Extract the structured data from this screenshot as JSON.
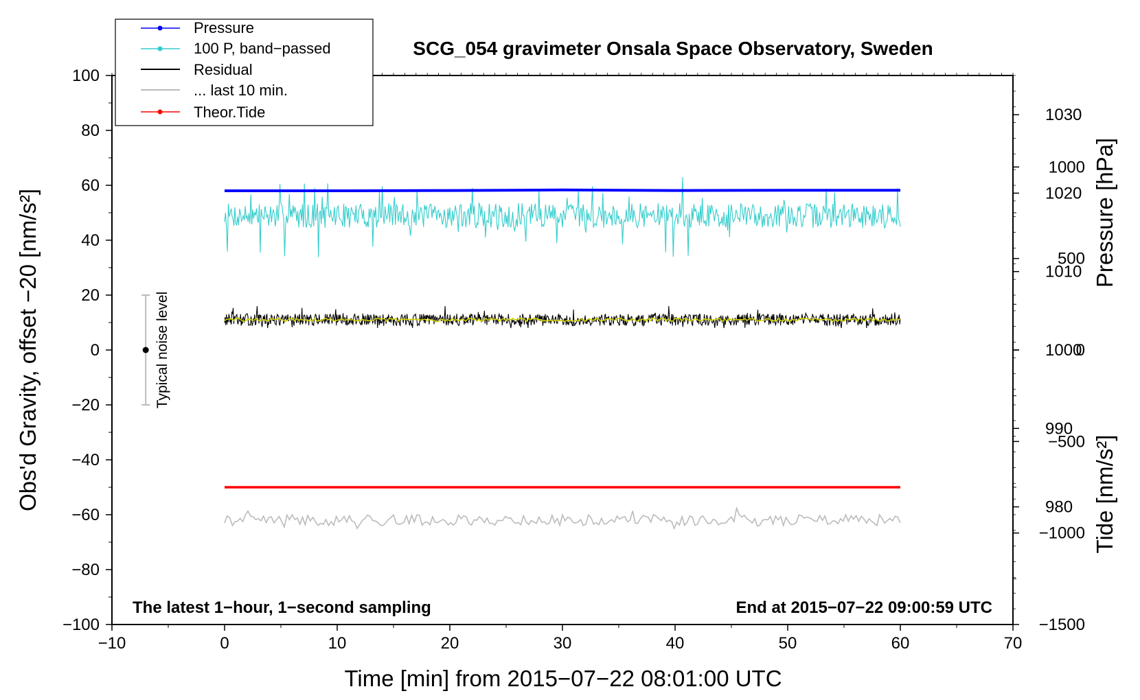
{
  "chart_data": {
    "type": "line",
    "title": "SCG_054 gravimeter Onsala Space Observatory, Sweden",
    "xlabel": "Time [min] from 2015−07−22 08:01:00 UTC",
    "ylabel_main": "Obs'd Gravity, offset −20 [nm/s²]",
    "ylabel_pressure": "Pressure [hPa]",
    "ylabel_tide": "Tide [nm/s²]",
    "xlim": [
      -10,
      70
    ],
    "ylim": [
      -100,
      100
    ],
    "pressure_ylim": [
      965,
      1035
    ],
    "tide_ylim": [
      -1500,
      1500
    ],
    "x_ticks": [
      "−10",
      "0",
      "10",
      "20",
      "30",
      "40",
      "50",
      "60",
      "70"
    ],
    "y_ticks": [
      "−100",
      "−80",
      "−60",
      "−40",
      "−20",
      "0",
      "20",
      "40",
      "60",
      "80",
      "100"
    ],
    "pressure_ticks": [
      "980",
      "990",
      "1000",
      "1010",
      "1020",
      "1030"
    ],
    "tide_ticks": [
      "−1500",
      "−1000",
      "−500",
      "0",
      "500",
      "1000"
    ],
    "grid": false,
    "legend_position": "top-left",
    "legend": [
      "Pressure",
      "100 P, band−passed",
      "Residual",
      "... last 10 min.",
      "Theor.Tide"
    ],
    "series": [
      {
        "name": "Pressure",
        "color": "#0000ff",
        "x": [
          0,
          10,
          20,
          30,
          40,
          50,
          60
        ],
        "y": [
          58,
          58,
          58.1,
          58.3,
          58.1,
          58.2,
          58.2
        ]
      },
      {
        "name": "100 P, band−passed",
        "color": "#33cccc",
        "x_range": [
          0,
          60
        ],
        "mean": 49,
        "min": 32,
        "max": 64
      },
      {
        "name": "Residual",
        "color": "#000000",
        "x_range": [
          0,
          60
        ],
        "mean": 11,
        "min": 8,
        "max": 16
      },
      {
        "name": "... last 10 min.",
        "color": "#bbbbbb",
        "x_range": [
          0,
          60
        ],
        "mean": -62,
        "min": -65,
        "max": -56
      },
      {
        "name": "Theor.Tide",
        "color": "#ff0000",
        "x": [
          0,
          30,
          60
        ],
        "y": [
          -50,
          -50,
          -50
        ]
      }
    ],
    "annotations": {
      "left_note": "The latest 1−hour, 1−second sampling",
      "right_note": "End at 2015−07−22 09:00:59 UTC",
      "noise_label": "Typical noise level",
      "noise_bar": {
        "x": -7,
        "center": 0,
        "low": -20,
        "high": 20
      }
    },
    "colors": {
      "pressure": "#0000ff",
      "bandpassed": "#33cccc",
      "residual": "#000000",
      "residual_filtered": "#d4d400",
      "last10": "#bbbbbb",
      "tide": "#ff0000"
    }
  }
}
